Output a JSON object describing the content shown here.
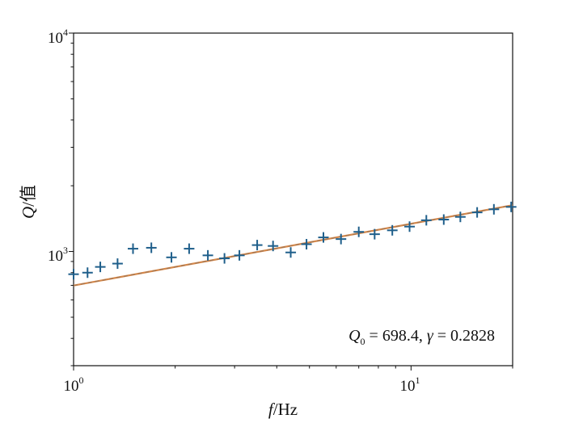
{
  "chart_data": {
    "type": "scatter",
    "xscale": "log",
    "yscale": "log",
    "xlim": [
      1.0,
      20.0
    ],
    "ylim": [
      300,
      10000
    ],
    "xlabel_italic": "f",
    "xlabel_unit": "/Hz",
    "ylabel_italic": "Q",
    "ylabel_suffix": "/值",
    "xticks": [
      {
        "value": 1,
        "base": "10",
        "exp": "0"
      },
      {
        "value": 10,
        "base": "10",
        "exp": "1"
      }
    ],
    "yticks": [
      {
        "value": 1000,
        "base": "10",
        "exp": "3"
      },
      {
        "value": 10000,
        "base": "10",
        "exp": "4"
      }
    ],
    "grid": false,
    "marker_color": "#1f5f8b",
    "fit_color": "#d4874a",
    "series": [
      {
        "marker": "plus",
        "x": [
          1.0,
          1.1,
          1.2,
          1.35,
          1.5,
          1.7,
          1.95,
          2.2,
          2.5,
          2.8,
          3.1,
          3.5,
          3.9,
          4.4,
          4.9,
          5.5,
          6.2,
          7.0,
          7.8,
          8.8,
          9.9,
          11.1,
          12.5,
          14.0,
          15.7,
          17.6,
          19.8
        ],
        "y": [
          787,
          800,
          850,
          880,
          1030,
          1040,
          940,
          1030,
          960,
          930,
          960,
          1070,
          1060,
          990,
          1080,
          1160,
          1140,
          1230,
          1200,
          1250,
          1300,
          1390,
          1400,
          1440,
          1510,
          1560,
          1600
        ]
      },
      {
        "marker": "none",
        "style": "fit-line",
        "equation": "Q = Q0 * f^gamma",
        "Q0": 698.4,
        "gamma": 0.2828
      }
    ],
    "annotation": {
      "q_symbol": "Q",
      "q_sub": "0",
      "text_mid": " = 698.4, ",
      "gamma_symbol": "γ",
      "text_end": " = 0.2828"
    }
  }
}
